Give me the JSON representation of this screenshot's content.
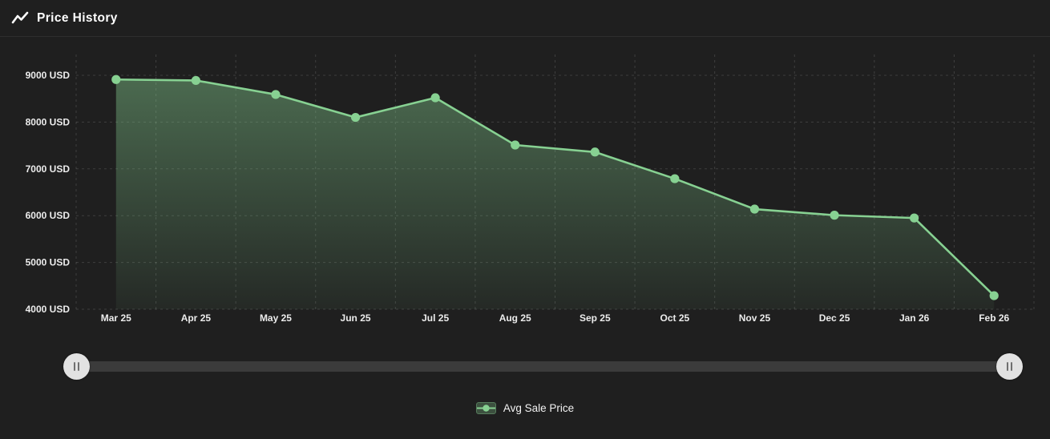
{
  "header": {
    "title": "Price History"
  },
  "chart_data": {
    "type": "area",
    "title": "Price History",
    "x": [
      "Mar 25",
      "Apr 25",
      "May 25",
      "Jun 25",
      "Jul 25",
      "Aug 25",
      "Sep 25",
      "Oct 25",
      "Nov 25",
      "Dec 25",
      "Jan 26",
      "Feb 26"
    ],
    "series": [
      {
        "name": "Avg Sale Price",
        "values": [
          8910,
          8890,
          8590,
          8100,
          8520,
          7510,
          7360,
          6790,
          6140,
          6010,
          5950,
          4290
        ]
      }
    ],
    "y_ticks": [
      9000,
      8000,
      7000,
      6000,
      5000,
      4000
    ],
    "y_tick_labels": [
      "9000 USD",
      "8000 USD",
      "7000 USD",
      "6000 USD",
      "5000 USD",
      "4000 USD"
    ],
    "ylim": [
      4000,
      9000
    ],
    "xlabel": "",
    "ylabel": "",
    "grid": "dashed",
    "legend_position": "bottom"
  },
  "legend": {
    "items": [
      {
        "label": "Avg Sale Price",
        "color": "#87d192"
      }
    ]
  },
  "colors": {
    "background": "#1f1f1f",
    "accent": "#87d192",
    "area_top": "rgba(135,209,146,0.42)",
    "area_bottom": "rgba(135,209,146,0.06)",
    "grid": "rgba(255,255,255,0.14)",
    "axis_text": "#ececec"
  }
}
